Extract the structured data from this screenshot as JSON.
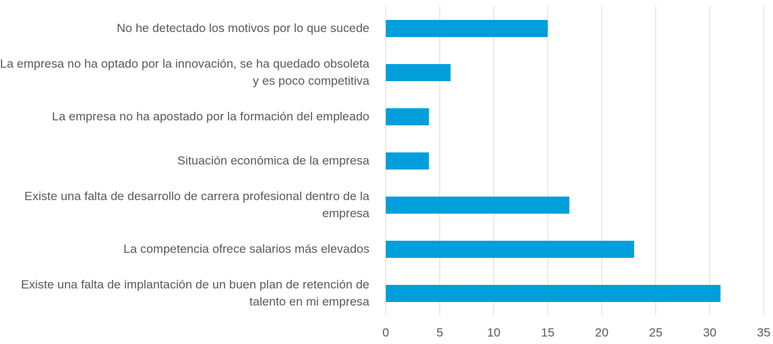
{
  "chart_data": {
    "type": "bar",
    "orientation": "horizontal",
    "categories": [
      "No he detectado los motivos por lo que sucede",
      "La empresa no ha optado por la innovación, se ha quedado obsoleta y es poco competitiva",
      "La empresa no ha apostado por la formación del empleado",
      "Situación económica de la empresa",
      "Existe una falta de desarrollo de carrera profesional dentro de la empresa",
      "La competencia ofrece salarios más elevados",
      "Existe una falta de implantación de un buen plan de retención de talento en mi empresa"
    ],
    "values": [
      15,
      6,
      4,
      4,
      17,
      23,
      31
    ],
    "color": "#009fdb",
    "xlim": [
      0,
      35
    ],
    "xticks": [
      0,
      5,
      10,
      15,
      20,
      25,
      30,
      35
    ],
    "grid": true
  }
}
